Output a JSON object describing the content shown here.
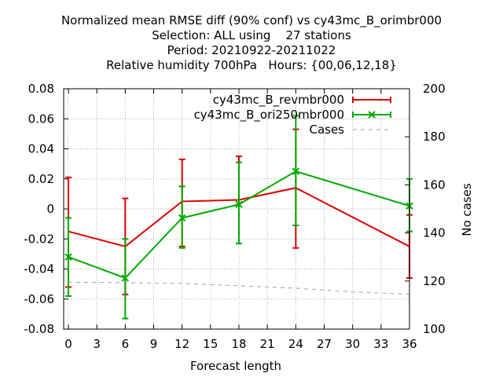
{
  "titles": [
    "Normalized mean RMSE diff (90% conf) vs cy43mc_B_orimbr000",
    "Selection: ALL using    27 stations",
    "Period: 20210922-20211022",
    "Relative humidity 700hPa   Hours: {00,06,12,18}"
  ],
  "chart_data": {
    "type": "line",
    "xlabel": "Forecast length",
    "ylabel": "",
    "y2label": "No cases",
    "xlim": [
      -0.5,
      36
    ],
    "ylim": [
      -0.08,
      0.08
    ],
    "y2lim": [
      100,
      200
    ],
    "xticks": [
      0,
      3,
      6,
      9,
      12,
      15,
      18,
      21,
      24,
      27,
      30,
      33,
      36
    ],
    "yticks": [
      -0.08,
      -0.06,
      -0.04,
      -0.02,
      0,
      0.02,
      0.04,
      0.06,
      0.08
    ],
    "ytick_labels": [
      "-0.08",
      "-0.06",
      "-0.04",
      "-0.02",
      "0",
      "0.02",
      "0.04",
      "0.06",
      "0.08"
    ],
    "y2ticks": [
      100,
      120,
      140,
      160,
      180,
      200
    ],
    "grid": true,
    "legend_position": "top-right",
    "x": [
      0,
      6,
      12,
      18,
      24,
      36
    ],
    "series": [
      {
        "name": "cy43mc_B_revmbr000",
        "color": "#dd0000",
        "values": [
          -0.015,
          -0.025,
          0.005,
          0.006,
          0.014,
          -0.025
        ],
        "err_low": [
          -0.052,
          -0.057,
          -0.025,
          -0.023,
          -0.026,
          -0.046
        ],
        "err_high": [
          0.021,
          0.007,
          0.033,
          0.035,
          0.053,
          -0.004
        ]
      },
      {
        "name": "cy43mc_B_ori250mbr000",
        "color": "#00aa00",
        "marker": "x",
        "values": [
          -0.032,
          -0.046,
          -0.006,
          0.003,
          0.025,
          0.002
        ],
        "err_low": [
          -0.058,
          -0.073,
          -0.026,
          -0.023,
          -0.011,
          -0.015
        ],
        "err_high": [
          -0.006,
          -0.02,
          0.015,
          0.031,
          0.062,
          0.02
        ]
      },
      {
        "name": "Cases",
        "color": "#a0a0a0",
        "axis": "y2",
        "dashed": true,
        "x": [
          0,
          6,
          12,
          18,
          24,
          30,
          36
        ],
        "values": [
          119.5,
          119.3,
          119,
          118,
          117,
          115.5,
          114.5
        ]
      }
    ]
  }
}
